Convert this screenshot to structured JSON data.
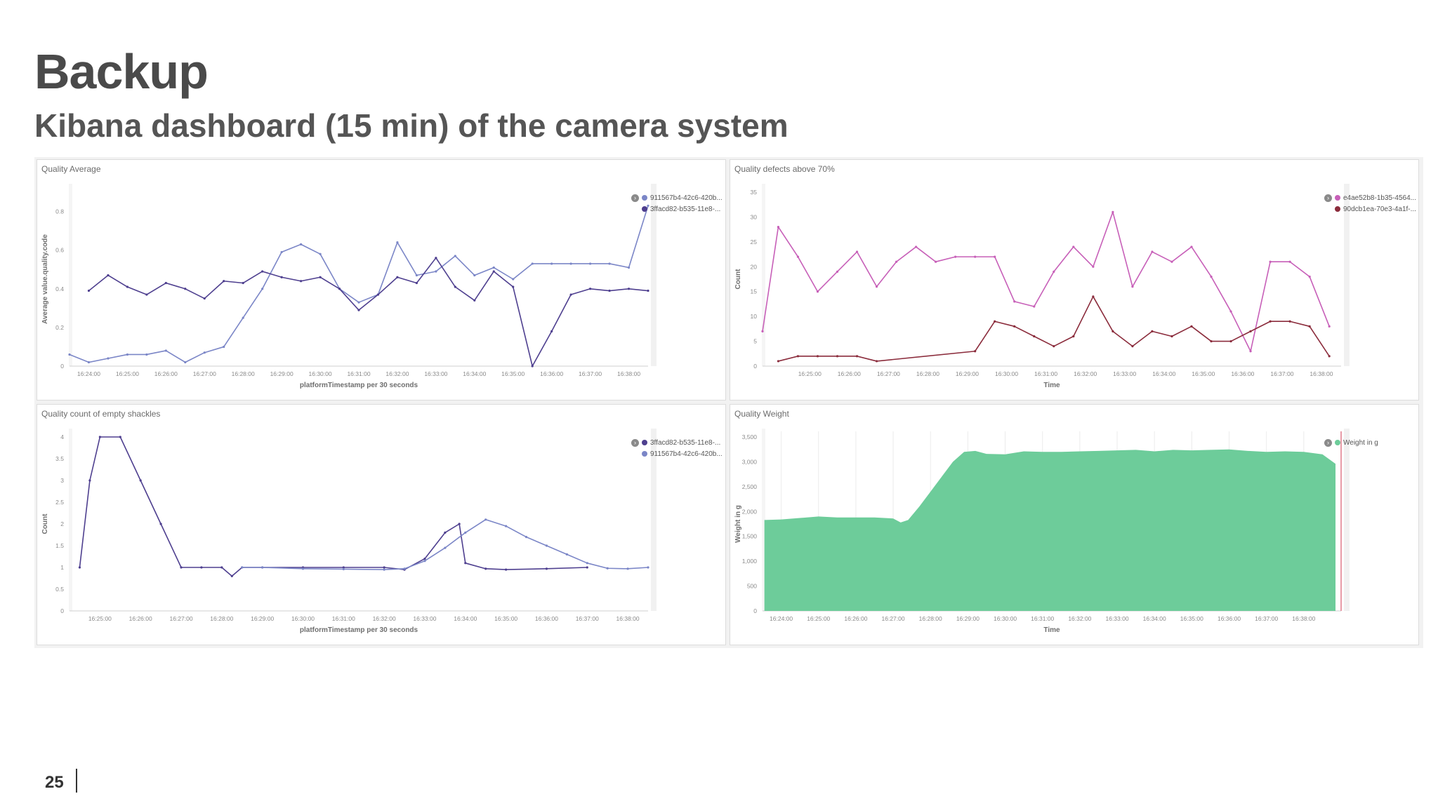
{
  "slide": {
    "title": "Backup",
    "subtitle": "Kibana dashboard (15 min) of the camera system",
    "page_number": "25"
  },
  "chart_data": [
    {
      "id": "quality-average",
      "type": "line",
      "title": "Quality Average",
      "xlabel": "platformTimestamp per 30 seconds",
      "ylabel": "Average value.quality.code",
      "ylim": [
        0,
        0.9
      ],
      "yticks": [
        0,
        0.2,
        0.4,
        0.6,
        0.8
      ],
      "ytick_labels": [
        "0",
        "0.2",
        "0.4",
        "0.6",
        "0.8"
      ],
      "xlim": [
        1583.5,
        1598.5
      ],
      "xticks": [
        1584,
        1585,
        1586,
        1587,
        1588,
        1589,
        1590,
        1591,
        1592,
        1593,
        1594,
        1595,
        1596,
        1597,
        1598
      ],
      "xtick_labels": [
        "16:24:00",
        "16:25:00",
        "16:26:00",
        "16:27:00",
        "16:28:00",
        "16:29:00",
        "16:30:00",
        "16:31:00",
        "16:32:00",
        "16:33:00",
        "16:34:00",
        "16:35:00",
        "16:36:00",
        "16:37:00",
        "16:38:00"
      ],
      "legend": "top-right",
      "grid": false,
      "series": [
        {
          "name": "911567b4-42c6-420b...",
          "color": "#7b86c7",
          "x": [
            1583.5,
            1584,
            1584.5,
            1585,
            1585.5,
            1586,
            1586.5,
            1587,
            1587.5,
            1588,
            1588.5,
            1589,
            1589.5,
            1590,
            1590.5,
            1591,
            1591.5,
            1592,
            1592.5,
            1593,
            1593.5,
            1594,
            1594.5,
            1595,
            1595.5,
            1596,
            1596.5,
            1597,
            1597.5,
            1598,
            1598.5
          ],
          "y": [
            0.06,
            0.02,
            0.04,
            0.06,
            0.06,
            0.08,
            0.02,
            0.07,
            0.1,
            0.25,
            0.4,
            0.59,
            0.63,
            0.58,
            0.4,
            0.33,
            0.37,
            0.64,
            0.47,
            0.49,
            0.57,
            0.47,
            0.51,
            0.45,
            0.53,
            0.53,
            0.53,
            0.53,
            0.53,
            0.51,
            0.83
          ]
        },
        {
          "name": "3ffacd82-b535-11e8-...",
          "color": "#4e3f8f",
          "x": [
            1584,
            1584.5,
            1585,
            1585.5,
            1586,
            1586.5,
            1587,
            1587.5,
            1588,
            1588.5,
            1589,
            1589.5,
            1590,
            1590.5,
            1591,
            1591.5,
            1592,
            1592.5,
            1593,
            1593.5,
            1594,
            1594.5,
            1595,
            1595.5,
            1596,
            1596.5,
            1597,
            1597.5,
            1598,
            1598.5
          ],
          "y": [
            0.39,
            0.47,
            0.41,
            0.37,
            0.43,
            0.4,
            0.35,
            0.44,
            0.43,
            0.49,
            0.46,
            0.44,
            0.46,
            0.4,
            0.29,
            0.37,
            0.46,
            0.43,
            0.56,
            0.41,
            0.34,
            0.49,
            0.41,
            0.0,
            0.18,
            0.37,
            0.4,
            0.39,
            0.4,
            0.39
          ]
        }
      ]
    },
    {
      "id": "quality-defects",
      "type": "line",
      "title": "Quality defects above 70%",
      "xlabel": "Time",
      "ylabel": "Count",
      "ylim": [
        0,
        35
      ],
      "yticks": [
        0,
        5,
        10,
        15,
        20,
        25,
        30,
        35
      ],
      "ytick_labels": [
        "0",
        "5",
        "10",
        "15",
        "20",
        "25",
        "30",
        "35"
      ],
      "xlim": [
        1583.8,
        1598.5
      ],
      "xticks": [
        1585,
        1586,
        1587,
        1588,
        1589,
        1590,
        1591,
        1592,
        1593,
        1594,
        1595,
        1596,
        1597,
        1598
      ],
      "xtick_labels": [
        "16:25:00",
        "16:26:00",
        "16:27:00",
        "16:28:00",
        "16:29:00",
        "16:30:00",
        "16:31:00",
        "16:32:00",
        "16:33:00",
        "16:34:00",
        "16:35:00",
        "16:36:00",
        "16:37:00",
        "16:38:00"
      ],
      "legend": "top-right",
      "grid": false,
      "series": [
        {
          "name": "e4ae52b8-1b35-4564...",
          "color": "#c75fb8",
          "x": [
            1583.8,
            1584.2,
            1584.7,
            1585.2,
            1585.7,
            1586.2,
            1586.7,
            1587.2,
            1587.7,
            1588.2,
            1588.7,
            1589.2,
            1589.7,
            1590.2,
            1590.7,
            1591.2,
            1591.7,
            1592.2,
            1592.7,
            1593.2,
            1593.7,
            1594.2,
            1594.7,
            1595.2,
            1595.7,
            1596.2,
            1596.7,
            1597.2,
            1597.7,
            1598.2
          ],
          "y": [
            7,
            28,
            22,
            15,
            19,
            23,
            16,
            21,
            24,
            21,
            22,
            22,
            22,
            13,
            12,
            19,
            24,
            20,
            31,
            16,
            23,
            21,
            24,
            18,
            11,
            3,
            21,
            21,
            18,
            8
          ]
        },
        {
          "name": "90dcb1ea-70e3-4a1f-...",
          "color": "#8b2c3c",
          "x": [
            1584.2,
            1584.7,
            1585.2,
            1585.7,
            1586.2,
            1586.7,
            1589.2,
            1589.7,
            1590.2,
            1590.7,
            1591.2,
            1591.7,
            1592.2,
            1592.7,
            1593.2,
            1593.7,
            1594.2,
            1594.7,
            1595.2,
            1595.7,
            1596.2,
            1596.7,
            1597.2,
            1597.7,
            1598.2
          ],
          "y": [
            1,
            2,
            2,
            2,
            2,
            1,
            3,
            9,
            8,
            6,
            4,
            6,
            14,
            7,
            4,
            7,
            6,
            8,
            5,
            5,
            7,
            9,
            9,
            8,
            2
          ]
        }
      ]
    },
    {
      "id": "quality-empty-shackles",
      "type": "line",
      "title": "Quality count of empty shackles",
      "xlabel": "platformTimestamp per 30 seconds",
      "ylabel": "Count",
      "ylim": [
        0,
        4
      ],
      "yticks": [
        0,
        0.5,
        1,
        1.5,
        2,
        2.5,
        3,
        3.5,
        4
      ],
      "ytick_labels": [
        "0",
        "0.5",
        "1",
        "1.5",
        "2",
        "2.5",
        "3",
        "3.5",
        "4"
      ],
      "xlim": [
        1584.25,
        1598.5
      ],
      "xticks": [
        1585,
        1586,
        1587,
        1588,
        1589,
        1590,
        1591,
        1592,
        1593,
        1594,
        1595,
        1596,
        1597,
        1598
      ],
      "xtick_labels": [
        "16:25:00",
        "16:26:00",
        "16:27:00",
        "16:28:00",
        "16:29:00",
        "16:30:00",
        "16:31:00",
        "16:32:00",
        "16:33:00",
        "16:34:00",
        "16:35:00",
        "16:36:00",
        "16:37:00",
        "16:38:00"
      ],
      "legend": "top-right",
      "grid": false,
      "series": [
        {
          "name": "3ffacd82-b535-11e8-...",
          "color": "#4e3f8f",
          "x": [
            1584.5,
            1584.75,
            1585,
            1585.5,
            1586,
            1586.5,
            1587,
            1587.5,
            1588,
            1588.25,
            1588.5,
            1589,
            1590,
            1591,
            1592,
            1592.5,
            1593,
            1593.5,
            1593.85,
            1594.0,
            1594.5,
            1595,
            1596,
            1597
          ],
          "y": [
            1,
            3,
            4,
            4,
            3,
            2,
            1,
            1,
            1,
            0.8,
            1,
            1,
            1,
            1,
            1,
            0.95,
            1.2,
            1.8,
            2,
            1.1,
            0.97,
            0.95,
            0.97,
            1
          ]
        },
        {
          "name": "911567b4-42c6-420b...",
          "color": "#7b86c7",
          "x": [
            1588.5,
            1589,
            1590,
            1591,
            1592,
            1592.5,
            1593,
            1593.5,
            1594,
            1594.5,
            1595,
            1595.5,
            1596,
            1596.5,
            1597,
            1597.5,
            1598,
            1598.5
          ],
          "y": [
            1,
            1,
            0.97,
            0.96,
            0.95,
            0.97,
            1.15,
            1.45,
            1.8,
            2.1,
            1.95,
            1.7,
            1.5,
            1.3,
            1.1,
            0.98,
            0.97,
            1
          ]
        }
      ]
    },
    {
      "id": "quality-weight",
      "type": "area",
      "title": "Quality Weight",
      "xlabel": "Time",
      "ylabel": "Weight in g",
      "ylim": [
        0,
        3500
      ],
      "yticks": [
        0,
        500,
        1000,
        1500,
        2000,
        2500,
        3000,
        3500
      ],
      "ytick_labels": [
        "0",
        "500",
        "1,000",
        "1,500",
        "2,000",
        "2,500",
        "3,000",
        "3,500"
      ],
      "xlim": [
        1583.5,
        1599
      ],
      "xticks": [
        1584,
        1585,
        1586,
        1587,
        1588,
        1589,
        1590,
        1591,
        1592,
        1593,
        1594,
        1595,
        1596,
        1597,
        1598
      ],
      "xtick_labels": [
        "16:24:00",
        "16:25:00",
        "16:26:00",
        "16:27:00",
        "16:28:00",
        "16:29:00",
        "16:30:00",
        "16:31:00",
        "16:32:00",
        "16:33:00",
        "16:34:00",
        "16:35:00",
        "16:36:00",
        "16:37:00",
        "16:38:00"
      ],
      "legend": "top-right",
      "grid": true,
      "series": [
        {
          "name": "Weight in g",
          "color": "#6dcc9a",
          "x": [
            1583.55,
            1584,
            1584.5,
            1585,
            1585.5,
            1586,
            1586.5,
            1587,
            1587.2,
            1587.4,
            1587.7,
            1588,
            1588.3,
            1588.6,
            1588.9,
            1589.2,
            1589.5,
            1590,
            1590.5,
            1591,
            1591.5,
            1592,
            1592.5,
            1593,
            1593.5,
            1594,
            1594.5,
            1595,
            1595.5,
            1596,
            1596.5,
            1597,
            1597.5,
            1598,
            1598.5,
            1598.85
          ],
          "y": [
            1830,
            1840,
            1870,
            1900,
            1880,
            1880,
            1880,
            1860,
            1780,
            1830,
            2100,
            2400,
            2700,
            3000,
            3200,
            3220,
            3160,
            3150,
            3210,
            3200,
            3200,
            3210,
            3220,
            3230,
            3240,
            3210,
            3240,
            3230,
            3240,
            3250,
            3220,
            3200,
            3210,
            3200,
            3150,
            2960
          ]
        }
      ]
    }
  ]
}
